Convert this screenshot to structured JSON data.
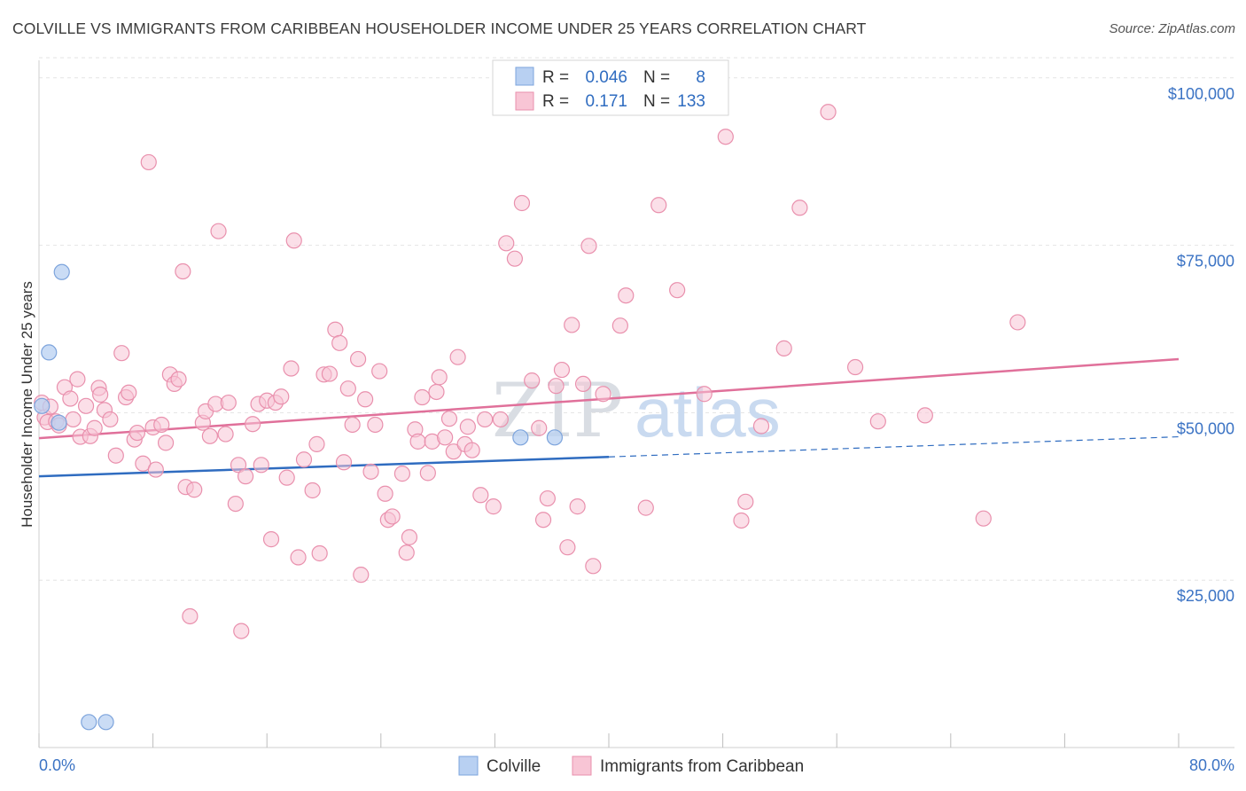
{
  "title": "COLVILLE VS IMMIGRANTS FROM CARIBBEAN HOUSEHOLDER INCOME UNDER 25 YEARS CORRELATION CHART",
  "source": "Source: ZipAtlas.com",
  "watermark": {
    "part1": "ZIP",
    "part2": "atlas"
  },
  "colors": {
    "colville_fill": "#b8d0f2",
    "colville_stroke": "#7da4dc",
    "colville_line": "#2f6cc0",
    "carib_fill": "#f8c5d5",
    "carib_stroke": "#e990ad",
    "carib_line": "#e0709a",
    "axis_label": "#3b73c4"
  },
  "legend": {
    "rows": [
      {
        "r_label": "R =",
        "r_value": "0.046",
        "n_label": "N =",
        "n_value": "8"
      },
      {
        "r_label": "R =",
        "r_value": "0.171",
        "n_label": "N =",
        "n_value": "133"
      }
    ]
  },
  "chart_data": {
    "type": "scatter",
    "ylabel": "Householder Income Under 25 years",
    "xlim": [
      0,
      80
    ],
    "ylim": [
      0,
      105000
    ],
    "x_tick_labels": [
      "0.0%",
      "80.0%"
    ],
    "y_ticks": [
      {
        "value": 25000,
        "label": "$25,000"
      },
      {
        "value": 50000,
        "label": "$50,000"
      },
      {
        "value": 75000,
        "label": "$75,000"
      },
      {
        "value": 100000,
        "label": "$100,000"
      }
    ],
    "grid": true,
    "series": [
      {
        "name": "Colville",
        "trend": {
          "x0": 0,
          "y0": 40500,
          "x1": 40,
          "y1": 43400,
          "dash_to_x": 80,
          "dash_to_y": 46400
        },
        "points": [
          [
            1.6,
            71000
          ],
          [
            0.7,
            59000
          ],
          [
            1.4,
            48500
          ],
          [
            0.2,
            51000
          ],
          [
            33.8,
            46300
          ],
          [
            36.2,
            46300
          ],
          [
            3.5,
            3800
          ],
          [
            4.7,
            3800
          ]
        ]
      },
      {
        "name": "Immigrants from Caribbean",
        "trend": {
          "x0": 0,
          "y0": 46200,
          "x1": 80,
          "y1": 58000
        },
        "points": [
          [
            0.2,
            51500
          ],
          [
            0.4,
            49300
          ],
          [
            0.6,
            48600
          ],
          [
            0.8,
            50900
          ],
          [
            1.2,
            48700
          ],
          [
            1.4,
            48100
          ],
          [
            1.8,
            53800
          ],
          [
            2.2,
            52100
          ],
          [
            2.4,
            49000
          ],
          [
            2.7,
            55000
          ],
          [
            2.9,
            46400
          ],
          [
            3.3,
            51000
          ],
          [
            3.6,
            46500
          ],
          [
            3.9,
            47700
          ],
          [
            4.2,
            53700
          ],
          [
            4.3,
            52700
          ],
          [
            4.6,
            50400
          ],
          [
            5.0,
            49000
          ],
          [
            5.4,
            43600
          ],
          [
            5.8,
            58900
          ],
          [
            6.1,
            52300
          ],
          [
            6.3,
            53000
          ],
          [
            6.7,
            46000
          ],
          [
            6.9,
            47000
          ],
          [
            7.3,
            42400
          ],
          [
            7.7,
            87400
          ],
          [
            8.0,
            47800
          ],
          [
            8.2,
            41500
          ],
          [
            8.6,
            48200
          ],
          [
            8.9,
            45500
          ],
          [
            9.2,
            55700
          ],
          [
            9.5,
            54300
          ],
          [
            9.8,
            55000
          ],
          [
            10.1,
            71100
          ],
          [
            10.3,
            38900
          ],
          [
            10.6,
            19600
          ],
          [
            10.9,
            38500
          ],
          [
            11.5,
            48500
          ],
          [
            11.7,
            50200
          ],
          [
            12.0,
            46500
          ],
          [
            12.4,
            51300
          ],
          [
            12.6,
            77100
          ],
          [
            13.1,
            46800
          ],
          [
            13.3,
            51500
          ],
          [
            13.8,
            36400
          ],
          [
            14.0,
            42200
          ],
          [
            14.2,
            17400
          ],
          [
            14.5,
            40500
          ],
          [
            15.0,
            48300
          ],
          [
            15.4,
            51300
          ],
          [
            15.6,
            42200
          ],
          [
            16.0,
            51800
          ],
          [
            16.3,
            31100
          ],
          [
            16.6,
            51500
          ],
          [
            17.0,
            52400
          ],
          [
            17.4,
            40300
          ],
          [
            17.7,
            56600
          ],
          [
            17.9,
            75700
          ],
          [
            18.2,
            28400
          ],
          [
            18.6,
            43000
          ],
          [
            19.2,
            38400
          ],
          [
            19.5,
            45300
          ],
          [
            19.7,
            29000
          ],
          [
            20.0,
            55700
          ],
          [
            20.4,
            55800
          ],
          [
            20.8,
            62400
          ],
          [
            21.1,
            60400
          ],
          [
            21.4,
            42600
          ],
          [
            21.7,
            53600
          ],
          [
            22.0,
            48200
          ],
          [
            22.4,
            58000
          ],
          [
            22.6,
            25800
          ],
          [
            22.9,
            52000
          ],
          [
            23.3,
            41200
          ],
          [
            23.6,
            48200
          ],
          [
            23.9,
            56200
          ],
          [
            24.3,
            37900
          ],
          [
            24.5,
            34000
          ],
          [
            24.8,
            34500
          ],
          [
            25.5,
            40900
          ],
          [
            25.8,
            29100
          ],
          [
            26.0,
            31400
          ],
          [
            26.4,
            47500
          ],
          [
            26.6,
            45700
          ],
          [
            26.9,
            52300
          ],
          [
            27.3,
            41000
          ],
          [
            27.6,
            45700
          ],
          [
            27.9,
            53100
          ],
          [
            28.1,
            55300
          ],
          [
            28.5,
            46300
          ],
          [
            28.8,
            49100
          ],
          [
            29.1,
            44200
          ],
          [
            29.4,
            58300
          ],
          [
            29.9,
            45300
          ],
          [
            30.1,
            47900
          ],
          [
            30.4,
            44400
          ],
          [
            31.0,
            37700
          ],
          [
            31.3,
            49000
          ],
          [
            31.9,
            36000
          ],
          [
            32.4,
            49000
          ],
          [
            32.8,
            75300
          ],
          [
            33.4,
            73000
          ],
          [
            33.9,
            81300
          ],
          [
            34.6,
            54800
          ],
          [
            35.1,
            47700
          ],
          [
            35.4,
            34000
          ],
          [
            35.7,
            37200
          ],
          [
            36.3,
            54000
          ],
          [
            36.7,
            56400
          ],
          [
            37.1,
            29900
          ],
          [
            37.4,
            63100
          ],
          [
            37.8,
            36000
          ],
          [
            38.2,
            54300
          ],
          [
            38.6,
            74900
          ],
          [
            38.9,
            27100
          ],
          [
            39.6,
            52800
          ],
          [
            40.8,
            63000
          ],
          [
            41.2,
            67500
          ],
          [
            42.6,
            35800
          ],
          [
            43.5,
            81000
          ],
          [
            44.8,
            68300
          ],
          [
            46.7,
            52800
          ],
          [
            48.2,
            91200
          ],
          [
            49.3,
            33900
          ],
          [
            49.6,
            36700
          ],
          [
            50.7,
            48000
          ],
          [
            52.3,
            59600
          ],
          [
            53.4,
            80600
          ],
          [
            55.4,
            94900
          ],
          [
            57.3,
            56800
          ],
          [
            58.9,
            48700
          ],
          [
            62.2,
            49600
          ],
          [
            66.3,
            34200
          ],
          [
            68.7,
            63500
          ]
        ]
      }
    ]
  },
  "bottom_legend": [
    {
      "label": "Colville"
    },
    {
      "label": "Immigrants from Caribbean"
    }
  ]
}
